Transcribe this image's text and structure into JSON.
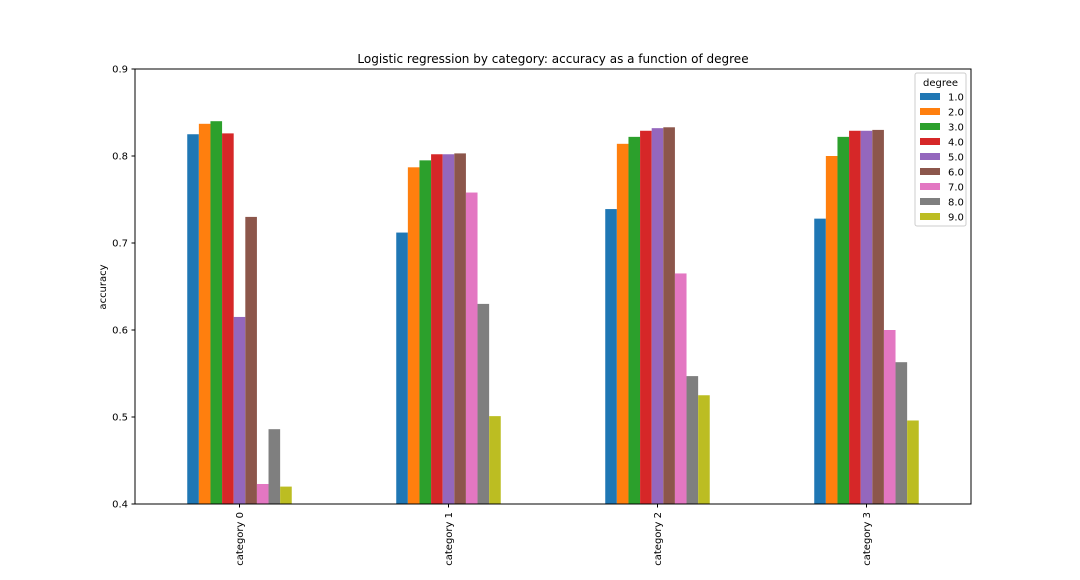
{
  "chart_data": {
    "type": "bar",
    "title": "Logistic regression by category: accuracy as a function of degree",
    "xlabel": "",
    "ylabel": "accuracy",
    "ylim": [
      0.4,
      0.9
    ],
    "yticks": [
      "0.4",
      "0.5",
      "0.6",
      "0.7",
      "0.8",
      "0.9"
    ],
    "categories": [
      "category 0",
      "category 1",
      "category 2",
      "category 3"
    ],
    "legend_title": "degree",
    "legend_position": "top-right",
    "grid": false,
    "series": [
      {
        "name": "1.0",
        "color": "#1f77b4",
        "values": [
          0.825,
          0.712,
          0.739,
          0.728
        ]
      },
      {
        "name": "2.0",
        "color": "#ff7f0e",
        "values": [
          0.837,
          0.787,
          0.814,
          0.8
        ]
      },
      {
        "name": "3.0",
        "color": "#2ca02c",
        "values": [
          0.84,
          0.795,
          0.822,
          0.822
        ]
      },
      {
        "name": "4.0",
        "color": "#d62728",
        "values": [
          0.826,
          0.802,
          0.829,
          0.829
        ]
      },
      {
        "name": "5.0",
        "color": "#9467bd",
        "values": [
          0.615,
          0.802,
          0.832,
          0.829
        ]
      },
      {
        "name": "6.0",
        "color": "#8c564b",
        "values": [
          0.73,
          0.803,
          0.833,
          0.83
        ]
      },
      {
        "name": "7.0",
        "color": "#e377c2",
        "values": [
          0.423,
          0.758,
          0.665,
          0.6
        ]
      },
      {
        "name": "8.0",
        "color": "#7f7f7f",
        "values": [
          0.486,
          0.63,
          0.547,
          0.563
        ]
      },
      {
        "name": "9.0",
        "color": "#bcbd22",
        "values": [
          0.42,
          0.501,
          0.525,
          0.496
        ]
      }
    ]
  }
}
